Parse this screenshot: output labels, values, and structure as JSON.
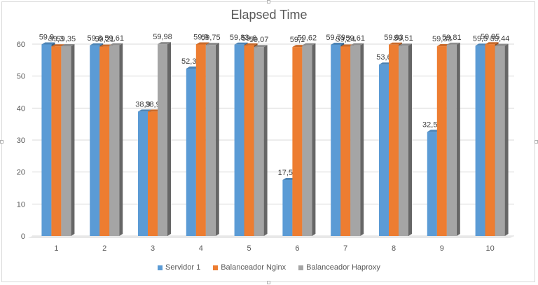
{
  "chart_data": {
    "type": "bar",
    "title": "Elapsed Time",
    "xlabel": "",
    "ylabel": "",
    "categories": [
      "1",
      "2",
      "3",
      "4",
      "5",
      "6",
      "7",
      "8",
      "9",
      "10"
    ],
    "ylim": [
      0,
      60
    ],
    "yticks": [
      0,
      10,
      20,
      30,
      40,
      50,
      60
    ],
    "grid": true,
    "legend_position": "bottom",
    "series": [
      {
        "name": "Servidor 1",
        "color": "#5b9bd5",
        "values": [
          59.9,
          59.6,
          38.9,
          52.33,
          59.83,
          17.52,
          59.79,
          53.6,
          32.55,
          59.5
        ],
        "labels": [
          "59,9",
          "59,6",
          "38,9",
          "52,33",
          "59,83",
          "17,52",
          "59,79",
          "53,6",
          "32,55",
          "59,5"
        ]
      },
      {
        "name": "Balanceador Nginx",
        "color": "#ed7d31",
        "values": [
          59.3,
          59.21,
          38.9,
          59.9,
          59.6,
          59.1,
          59.24,
          59.83,
          59.33,
          59.95
        ],
        "labels": [
          "59,3",
          "59,21",
          "38,9",
          "59,9",
          "59,6",
          "59,1",
          "59,24",
          "59,83",
          "59,33",
          "59,95"
        ]
      },
      {
        "name": "Balanceador Haproxy",
        "color": "#a5a5a5",
        "values": [
          59.35,
          59.61,
          59.98,
          59.75,
          59.07,
          59.62,
          59.61,
          59.51,
          59.81,
          59.44
        ],
        "labels": [
          "59,35",
          "59,61",
          "59,98",
          "59,75",
          "59,07",
          "59,62",
          "59,61",
          "59,51",
          "59,81",
          "59,44"
        ]
      }
    ]
  }
}
